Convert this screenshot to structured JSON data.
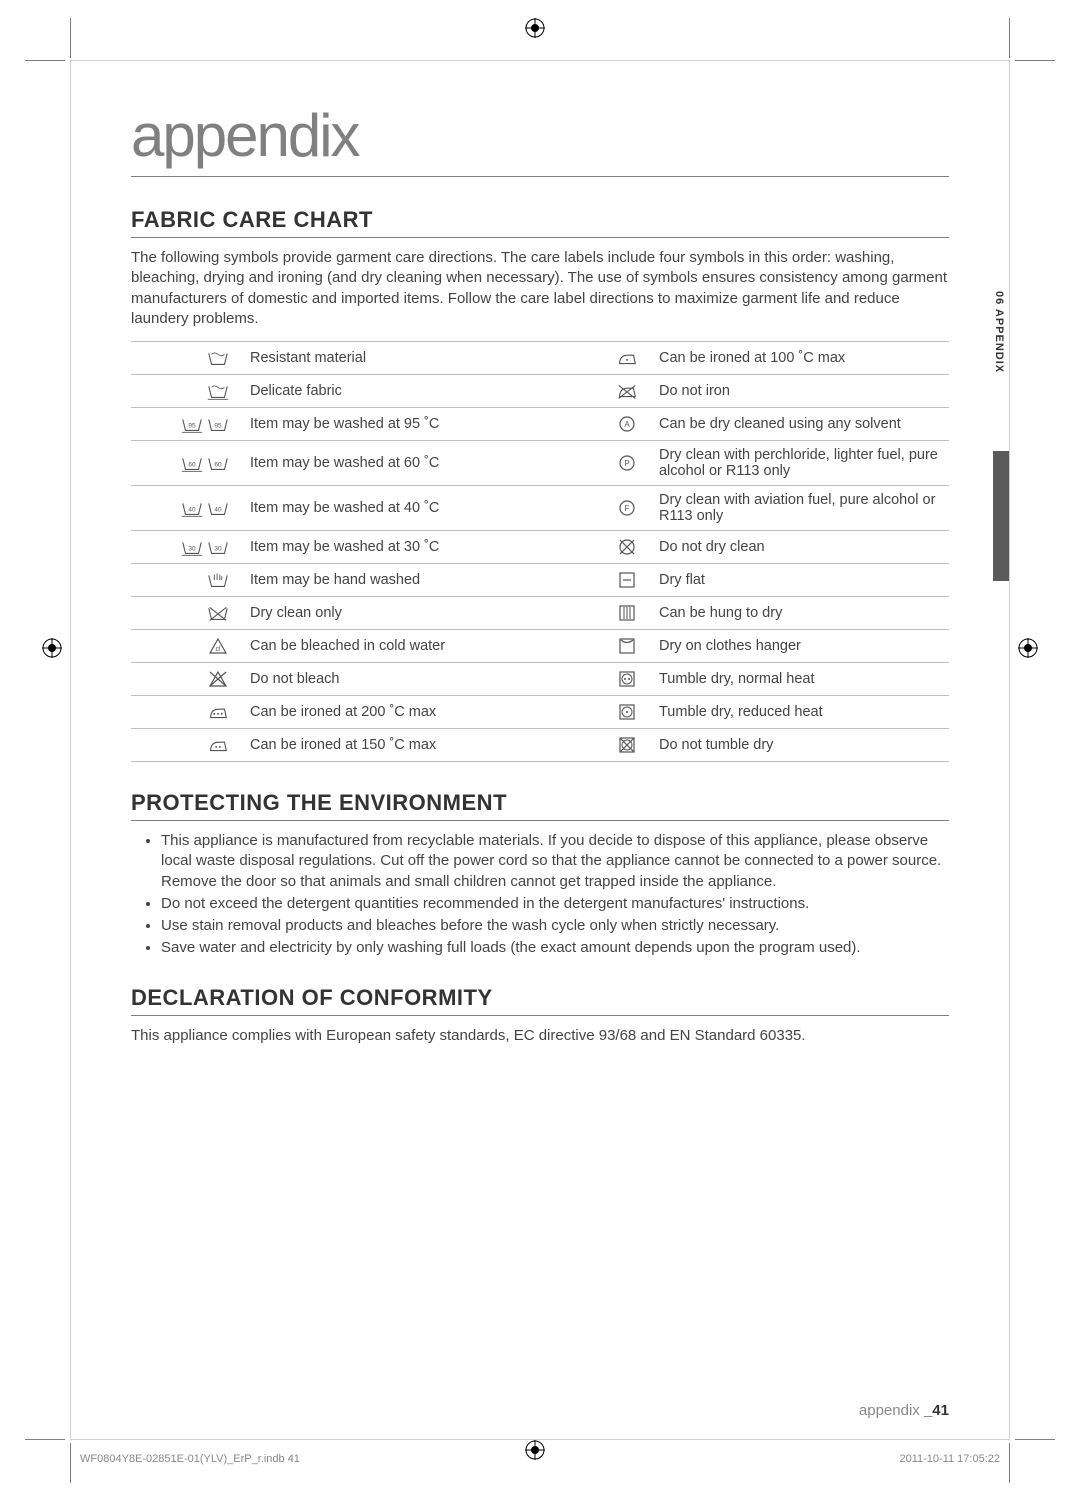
{
  "colors": {
    "text": "#444444",
    "heading": "#333333",
    "title_gray": "#808080",
    "border": "#c0c0c0",
    "sidebar_bar": "#5a5a5a",
    "background": "#ffffff"
  },
  "title": "appendix",
  "sections": {
    "fabric": {
      "heading": "FABRIC CARE CHART",
      "intro": "The following symbols provide garment care directions. The care labels include four symbols in this order: washing, bleaching, drying and ironing (and dry cleaning when necessary).  The use of symbols ensures consistency among garment manufacturers of domestic and imported items.  Follow the care label directions to maximize garment life and reduce laundery problems."
    },
    "environment": {
      "heading": "PROTECTING THE ENVIRONMENT",
      "items": [
        "This appliance is manufactured from recyclable materials. If you decide to dispose of this appliance, please observe local waste disposal regulations. Cut off the power cord so that the appliance cannot be connected to a power source. Remove the door so that animals and small children cannot get trapped inside the appliance.",
        "Do not exceed the detergent quantities recommended in the detergent manufactures' instructions.",
        "Use stain removal products and bleaches before the wash cycle only when strictly necessary.",
        "Save water and electricity by only washing full loads (the exact amount depends upon the program used)."
      ]
    },
    "conformity": {
      "heading": "DECLARATION OF CONFORMITY",
      "text": "This appliance complies with European safety standards, EC directive 93/68 and EN Standard 60335."
    }
  },
  "care_table": {
    "left": [
      "Resistant material",
      "Delicate fabric",
      "Item may be washed at 95 ˚C",
      "Item may be washed at 60 ˚C",
      "Item may be washed at 40 ˚C",
      "Item may be washed at 30 ˚C",
      "Item may be hand washed",
      "Dry clean only",
      "Can be bleached in cold water",
      "Do not bleach",
      "Can be ironed at 200 ˚C max",
      "Can be ironed at 150 ˚C max"
    ],
    "right": [
      "Can be ironed at 100 ˚C max",
      "Do not iron",
      "Can be dry cleaned using any solvent",
      "Dry clean with perchloride, lighter fuel, pure alcohol or R113 only",
      "Dry clean with aviation fuel, pure alcohol or R113 only",
      "Do not dry clean",
      "Dry flat",
      "Can be hung to dry",
      "Dry on clothes hanger",
      "Tumble dry, normal heat",
      "Tumble dry, reduced heat",
      "Do not tumble dry"
    ],
    "temp_labels": {
      "r2": "95",
      "r3": "60",
      "r4": "40",
      "r5": "30"
    }
  },
  "sidebar": {
    "label": "06 APPENDIX"
  },
  "footer": {
    "section": "appendix",
    "page": "_41"
  },
  "meta": {
    "file": "WF0804Y8E-02851E-01(YLV)_ErP_r.indb   41",
    "timestamp": "2011-10-11   17:05:22"
  }
}
